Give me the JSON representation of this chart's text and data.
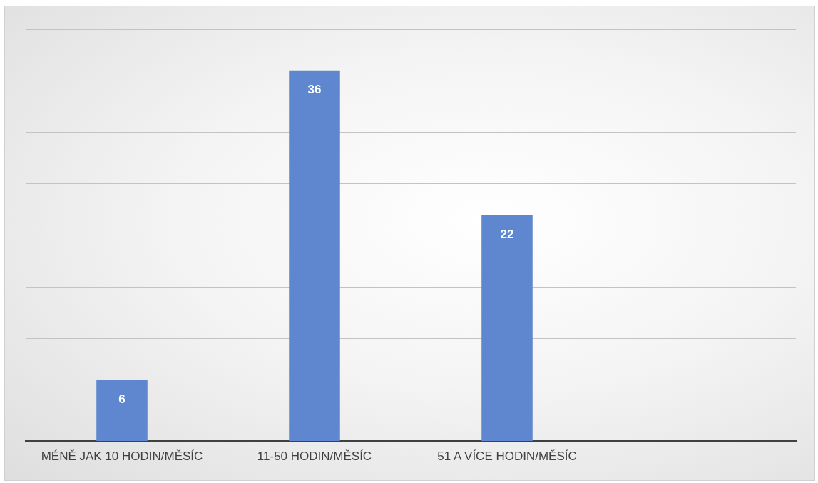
{
  "chart_data": {
    "type": "bar",
    "categories": [
      "MÉNĚ JAK 10 HODIN/MĚSÍC",
      "11-50 HODIN/MĚSÍC",
      "51 A VÍCE HODIN/MĚSÍC",
      null
    ],
    "values": [
      6,
      36,
      22,
      null
    ],
    "color": "#5e87cf",
    "ylim": [
      0,
      40
    ],
    "yticks": [
      {
        "value": 0,
        "label": null
      },
      {
        "value": 5,
        "label": null
      },
      {
        "value": 10,
        "label": null
      },
      {
        "value": 15,
        "label": null
      },
      {
        "value": 20,
        "label": null
      },
      {
        "value": 25,
        "label": null
      },
      {
        "value": 30,
        "label": null
      },
      {
        "value": 35,
        "label": null
      },
      {
        "value": 40,
        "label": null
      }
    ],
    "grid": "y",
    "tick_labels": "x",
    "data_labels": true
  }
}
